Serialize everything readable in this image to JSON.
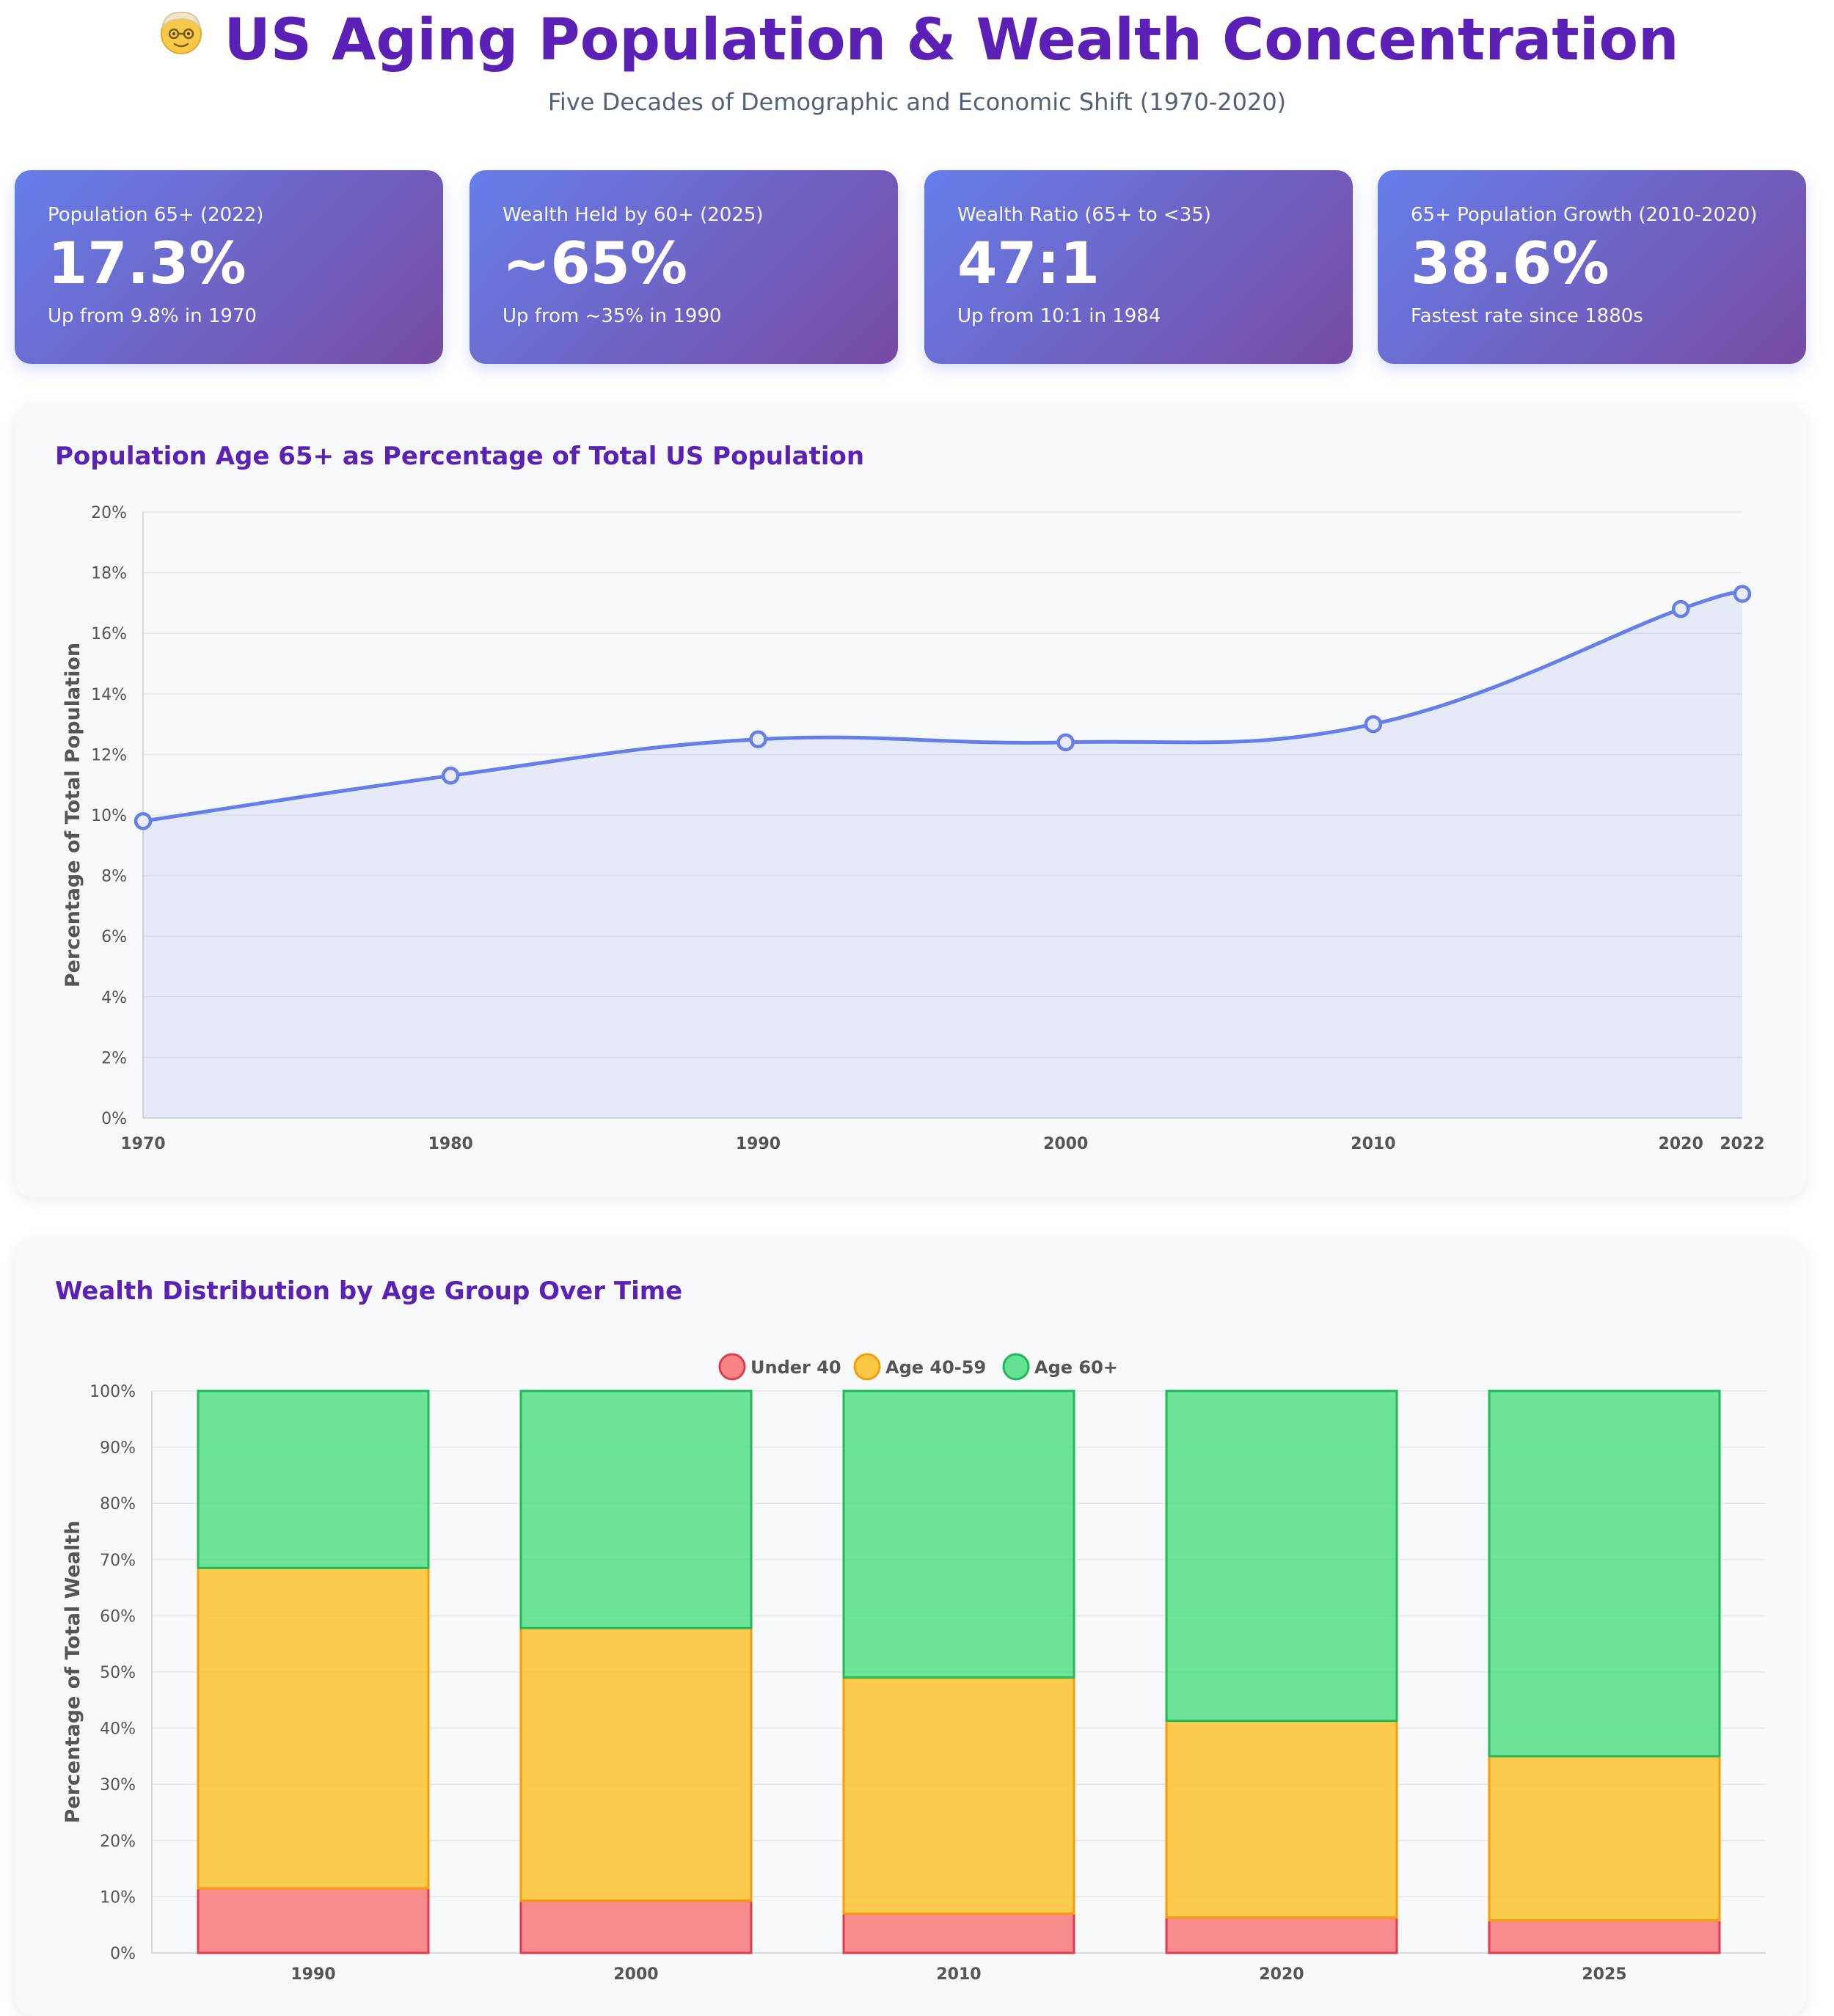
{
  "header": {
    "title": "US Aging Population & Wealth Concentration",
    "subtitle": "Five Decades of Demographic and Economic Shift (1970-2020)"
  },
  "cards": [
    {
      "label": "Population 65+ (2022)",
      "value": "17.3%",
      "note": "Up from 9.8% in 1970"
    },
    {
      "label": "Wealth Held by 60+ (2025)",
      "value": "~65%",
      "note": "Up from ~35% in 1990"
    },
    {
      "label": "Wealth Ratio (65+ to <35)",
      "value": "47:1",
      "note": "Up from 10:1 in 1984"
    },
    {
      "label": "65+ Population Growth (2010-2020)",
      "value": "38.6%",
      "note": "Fastest rate since 1880s"
    }
  ],
  "colors": {
    "line": "#667eea",
    "under40": "#f87171",
    "age40_59": "#fbbf24",
    "age60plus": "#4ade80"
  },
  "chart_data": [
    {
      "type": "line",
      "title": "Population Age 65+ as Percentage of Total US Population",
      "x": [
        "1970",
        "1980",
        "1990",
        "2000",
        "2010",
        "2020",
        "2022"
      ],
      "values": [
        9.8,
        11.3,
        12.5,
        12.4,
        13.0,
        16.8,
        17.3
      ],
      "xlabel": "",
      "ylabel": "Percentage of Total Population",
      "ylim": [
        0,
        20
      ],
      "yticks": [
        "0%",
        "2%",
        "4%",
        "6%",
        "8%",
        "10%",
        "12%",
        "14%",
        "16%",
        "18%",
        "20%"
      ],
      "grid": true,
      "fill": true
    },
    {
      "type": "bar",
      "stacked": true,
      "title": "Wealth Distribution by Age Group Over Time",
      "categories": [
        "1990",
        "2000",
        "2010",
        "2020",
        "2025"
      ],
      "series": [
        {
          "name": "Under 40",
          "values": [
            11.5,
            9.3,
            7.0,
            6.3,
            5.8
          ]
        },
        {
          "name": "Age 40-59",
          "values": [
            57.0,
            48.5,
            42.0,
            35.0,
            29.2
          ]
        },
        {
          "name": "Age 60+",
          "values": [
            31.5,
            42.2,
            51.0,
            58.7,
            65.0
          ]
        }
      ],
      "xlabel": "",
      "ylabel": "Percentage of Total Wealth",
      "ylim": [
        0,
        100
      ],
      "yticks": [
        "0%",
        "10%",
        "20%",
        "30%",
        "40%",
        "50%",
        "60%",
        "70%",
        "80%",
        "90%",
        "100%"
      ],
      "legend": "top-center",
      "grid": true
    }
  ]
}
